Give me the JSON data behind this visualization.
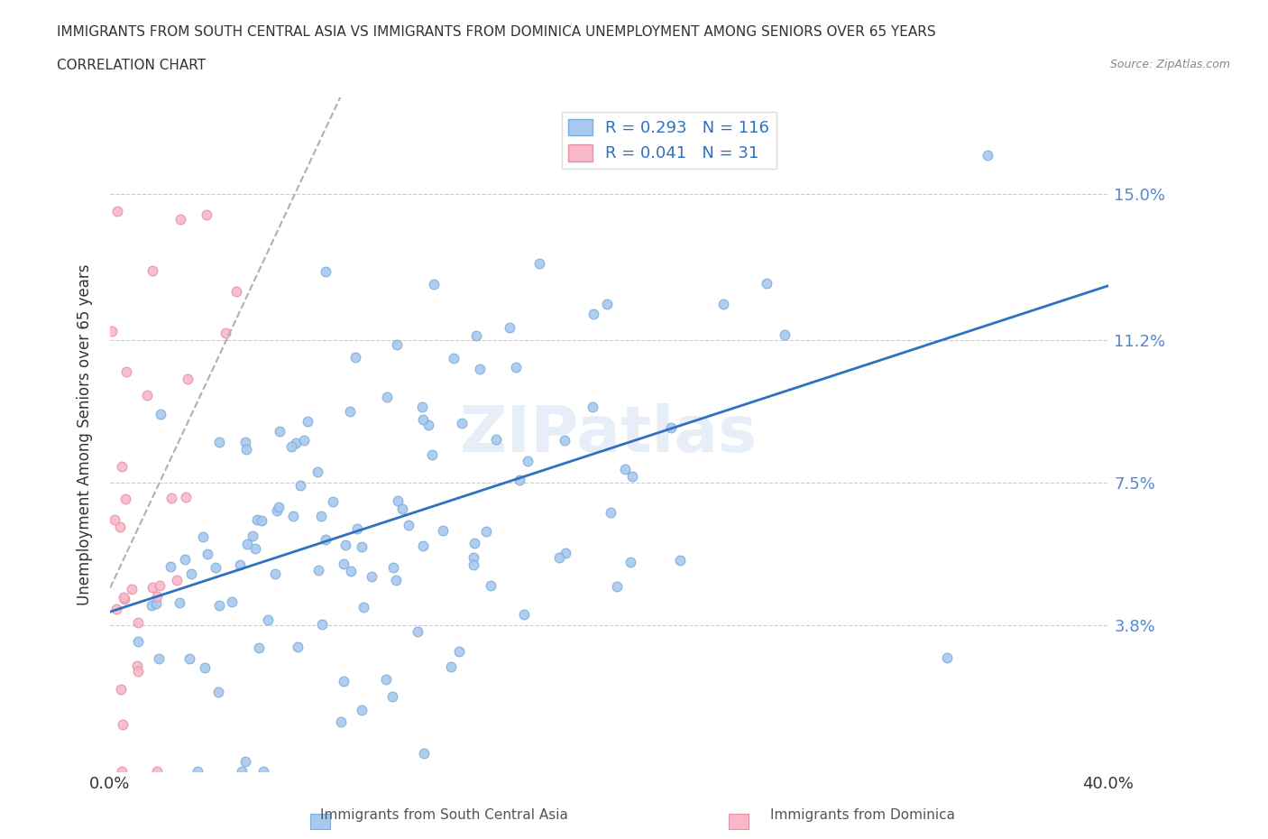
{
  "title_line1": "IMMIGRANTS FROM SOUTH CENTRAL ASIA VS IMMIGRANTS FROM DOMINICA UNEMPLOYMENT AMONG SENIORS OVER 65 YEARS",
  "title_line2": "CORRELATION CHART",
  "source": "Source: ZipAtlas.com",
  "xlabel": "",
  "ylabel": "Unemployment Among Seniors over 65 years",
  "xmin": 0.0,
  "xmax": 0.4,
  "ymin": 0.0,
  "ymax": 0.175,
  "yticks": [
    0.038,
    0.075,
    0.112,
    0.15
  ],
  "ytick_labels": [
    "3.8%",
    "7.5%",
    "11.2%",
    "15.0%"
  ],
  "xticks": [
    0.0,
    0.05,
    0.1,
    0.15,
    0.2,
    0.25,
    0.3,
    0.35,
    0.4
  ],
  "xtick_labels": [
    "0.0%",
    "",
    "",
    "",
    "",
    "",
    "",
    "",
    "40.0%"
  ],
  "series1_color": "#a8c8f0",
  "series1_edge": "#7aaed6",
  "series2_color": "#f8b8c8",
  "series2_edge": "#e890a8",
  "trend1_color": "#3070c0",
  "trend2_color": "#c0c0c0",
  "R1": 0.293,
  "N1": 116,
  "R2": 0.041,
  "N2": 31,
  "legend_label1": "Immigrants from South Central Asia",
  "legend_label2": "Immigrants from Dominica",
  "watermark": "ZIPatlas",
  "seed1": 42,
  "seed2": 99
}
